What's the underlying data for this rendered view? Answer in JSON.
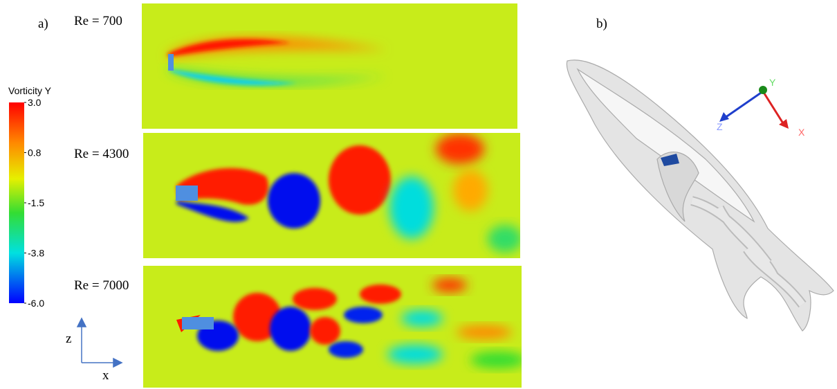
{
  "panel_a": {
    "label": "a)",
    "colorbar": {
      "title": "Vorticity Y",
      "ticks": [
        "3.0",
        "0.8",
        "-1.5",
        "-3.8",
        "-6.0"
      ]
    },
    "plots": [
      {
        "label": "Re = 700"
      },
      {
        "label": "Re = 4300"
      },
      {
        "label": "Re = 7000"
      }
    ],
    "axes": {
      "vertical": "z",
      "horizontal": "x"
    }
  },
  "panel_b": {
    "label": "b)",
    "axes": {
      "x": "X",
      "y": "Y",
      "z": "Z"
    }
  }
}
